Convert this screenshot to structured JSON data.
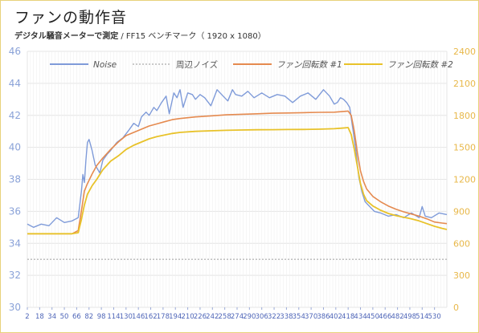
{
  "title": "ファンの動作音",
  "subtitle_bold": "デジタル騒音メーターで測定",
  "subtitle_rest": " / FF15 ベンチマーク（ 1920 x 1080）",
  "chart_data": {
    "type": "line",
    "title": "ファンの動作音",
    "xlabel": "",
    "ylabel_left": "",
    "ylabel_right": "",
    "xlim": [
      2,
      546
    ],
    "y_left_lim": [
      30,
      46
    ],
    "y_left_ticks": [
      30,
      32,
      34,
      36,
      38,
      40,
      42,
      44,
      46
    ],
    "y_right_lim": [
      0,
      2400
    ],
    "y_right_ticks": [
      0,
      300,
      600,
      900,
      1200,
      1500,
      1800,
      2100,
      2400
    ],
    "x_ticks": [
      2,
      18,
      34,
      50,
      66,
      82,
      98,
      114,
      130,
      146,
      162,
      178,
      194,
      210,
      226,
      242,
      258,
      274,
      290,
      306,
      322,
      338,
      354,
      370,
      386,
      402,
      418,
      434,
      450,
      466,
      482,
      498,
      514,
      530
    ],
    "grid": true,
    "legend_position": "top",
    "colors": {
      "noise": "#7f9bd9",
      "ambient": "#b8b8b8",
      "fan1": "#e58a4f",
      "fan2": "#e8c22a",
      "left_axis_text": "#8aa2d8",
      "right_axis_text": "#e8b84a"
    },
    "series": [
      {
        "name": "Noise",
        "axis": "left",
        "x": [
          2,
          10,
          20,
          30,
          40,
          50,
          60,
          68,
          72,
          74,
          76,
          78,
          80,
          82,
          86,
          90,
          96,
          100,
          106,
          110,
          118,
          126,
          134,
          140,
          146,
          150,
          156,
          160,
          166,
          170,
          176,
          182,
          186,
          192,
          196,
          200,
          204,
          210,
          216,
          220,
          226,
          232,
          240,
          248,
          256,
          262,
          268,
          272,
          280,
          288,
          296,
          306,
          316,
          326,
          336,
          346,
          356,
          366,
          376,
          386,
          394,
          400,
          404,
          408,
          412,
          416,
          420,
          424,
          428,
          432,
          436,
          440,
          446,
          452,
          460,
          470,
          480,
          490,
          500,
          510,
          514,
          518,
          526,
          536,
          546
        ],
        "values": [
          35.2,
          35.0,
          35.2,
          35.1,
          35.6,
          35.3,
          35.4,
          35.6,
          37.2,
          38.3,
          37.8,
          39.2,
          40.3,
          40.5,
          39.8,
          38.9,
          38.4,
          39.2,
          39.6,
          39.8,
          40.3,
          40.6,
          41.1,
          41.5,
          41.3,
          41.9,
          42.2,
          42.0,
          42.5,
          42.3,
          42.8,
          43.2,
          42.1,
          43.4,
          43.1,
          43.6,
          42.5,
          43.4,
          43.3,
          43.0,
          43.3,
          43.1,
          42.6,
          43.6,
          43.2,
          42.9,
          43.6,
          43.3,
          43.2,
          43.5,
          43.1,
          43.4,
          43.1,
          43.3,
          43.2,
          42.8,
          43.2,
          43.4,
          43.0,
          43.6,
          43.2,
          42.7,
          42.8,
          43.1,
          43.0,
          42.8,
          42.5,
          41.2,
          39.8,
          38.1,
          37.2,
          36.6,
          36.3,
          36.0,
          35.9,
          35.7,
          35.8,
          35.6,
          35.9,
          35.6,
          36.3,
          35.7,
          35.6,
          35.9,
          35.8
        ]
      },
      {
        "name": "周辺ノイズ",
        "axis": "left",
        "x": [
          2,
          546
        ],
        "values": [
          33.0,
          33.0
        ]
      },
      {
        "name": "ファン回転数 #1",
        "axis": "right",
        "x": [
          2,
          20,
          40,
          60,
          68,
          72,
          76,
          80,
          86,
          92,
          100,
          110,
          120,
          130,
          140,
          150,
          160,
          170,
          180,
          190,
          200,
          220,
          240,
          260,
          280,
          300,
          320,
          340,
          360,
          380,
          400,
          410,
          418,
          422,
          426,
          430,
          434,
          438,
          442,
          450,
          460,
          470,
          480,
          490,
          500,
          510,
          520,
          530,
          540,
          546
        ],
        "values": [
          690,
          690,
          690,
          690,
          720,
          900,
          1090,
          1160,
          1250,
          1330,
          1400,
          1480,
          1550,
          1610,
          1640,
          1670,
          1700,
          1720,
          1740,
          1760,
          1770,
          1785,
          1795,
          1805,
          1810,
          1815,
          1820,
          1822,
          1825,
          1828,
          1830,
          1835,
          1840,
          1800,
          1650,
          1450,
          1280,
          1180,
          1110,
          1040,
          990,
          950,
          920,
          895,
          875,
          855,
          830,
          800,
          790,
          785
        ]
      },
      {
        "name": "ファン回転数 #2",
        "axis": "right",
        "x": [
          2,
          20,
          40,
          60,
          68,
          72,
          76,
          80,
          86,
          92,
          100,
          110,
          120,
          130,
          140,
          150,
          160,
          170,
          180,
          190,
          200,
          220,
          240,
          260,
          280,
          300,
          320,
          340,
          360,
          380,
          400,
          410,
          418,
          422,
          426,
          430,
          434,
          438,
          442,
          450,
          460,
          470,
          480,
          490,
          500,
          510,
          520,
          530,
          540,
          546
        ],
        "values": [
          690,
          690,
          690,
          690,
          700,
          820,
          960,
          1060,
          1140,
          1200,
          1290,
          1370,
          1420,
          1480,
          1520,
          1550,
          1580,
          1600,
          1615,
          1630,
          1640,
          1650,
          1655,
          1660,
          1663,
          1665,
          1666,
          1667,
          1668,
          1670,
          1675,
          1680,
          1685,
          1620,
          1480,
          1320,
          1160,
          1060,
          1000,
          950,
          910,
          880,
          860,
          845,
          830,
          810,
          785,
          760,
          740,
          730
        ]
      }
    ]
  }
}
